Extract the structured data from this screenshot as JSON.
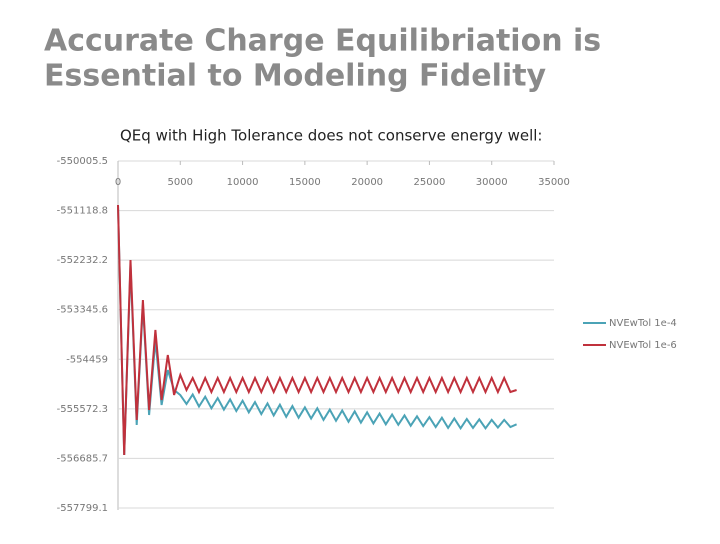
{
  "slide": {
    "title_lines": [
      "Accurate Charge Equilibriation is",
      "Essential to Modeling Fidelity"
    ]
  },
  "chart_data": {
    "type": "line",
    "title": "QEq with High Tolerance does not conserve energy well:",
    "x": [
      0,
      500,
      1000,
      1500,
      2000,
      2500,
      3000,
      3500,
      4000,
      4500,
      5000,
      5500,
      6000,
      6500,
      7000,
      7500,
      8000,
      8500,
      9000,
      9500,
      10000,
      10500,
      11000,
      11500,
      12000,
      12500,
      13000,
      13500,
      14000,
      14500,
      15000,
      15500,
      16000,
      16500,
      17000,
      17500,
      18000,
      18500,
      19000,
      19500,
      20000,
      20500,
      21000,
      21500,
      22000,
      22500,
      23000,
      23500,
      24000,
      24500,
      25000,
      25500,
      26000,
      26500,
      27000,
      27500,
      28000,
      28500,
      29000,
      29500,
      30000,
      30500,
      31000,
      31500,
      32000
    ],
    "series": [
      {
        "name": "NVEwTol 1e-4",
        "color": "#4ba3b6",
        "values": [
          -550994,
          -556609,
          -552341,
          -555935,
          -553240,
          -555710,
          -554026,
          -555486,
          -554700,
          -555149,
          -555261,
          -555463,
          -555250,
          -555520,
          -555300,
          -555560,
          -555330,
          -555590,
          -555360,
          -555620,
          -555390,
          -555650,
          -555420,
          -555690,
          -555450,
          -555720,
          -555480,
          -555750,
          -555510,
          -555770,
          -555540,
          -555790,
          -555560,
          -555820,
          -555590,
          -555840,
          -555610,
          -555860,
          -555630,
          -555880,
          -555650,
          -555900,
          -555680,
          -555920,
          -555700,
          -555930,
          -555720,
          -555950,
          -555740,
          -555960,
          -555760,
          -555980,
          -555770,
          -556000,
          -555790,
          -556010,
          -555800,
          -556000,
          -555810,
          -556010,
          -555820,
          -555990,
          -555820,
          -555980,
          -555920
        ]
      },
      {
        "name": "NVEwTol 1e-6",
        "color": "#c0313c",
        "values": [
          -550994,
          -556609,
          -552229,
          -555823,
          -553127,
          -555598,
          -553801,
          -555373,
          -554363,
          -555261,
          -554812,
          -555149,
          -554879,
          -555194,
          -554879,
          -555194,
          -554879,
          -555194,
          -554879,
          -555194,
          -554879,
          -555194,
          -554879,
          -555194,
          -554879,
          -555194,
          -554879,
          -555194,
          -554879,
          -555194,
          -554879,
          -555194,
          -554879,
          -555194,
          -554879,
          -555194,
          -554879,
          -555194,
          -554879,
          -555194,
          -554879,
          -555194,
          -554879,
          -555194,
          -554879,
          -555194,
          -554879,
          -555194,
          -554879,
          -555194,
          -554879,
          -555194,
          -554879,
          -555194,
          -554879,
          -555194,
          -554879,
          -555194,
          -554879,
          -555194,
          -554879,
          -555194,
          -554879,
          -555194,
          -555149
        ]
      }
    ],
    "xlim": [
      0,
      35000
    ],
    "xticks": [
      0,
      5000,
      10000,
      15000,
      20000,
      25000,
      30000,
      35000
    ],
    "ylim": [
      -557799.1,
      -550005.5
    ],
    "yticks": [
      -550005.5,
      -551118.8,
      -552232.2,
      -553345.6,
      -554459,
      -555572.3,
      -556685.7,
      -557799.1
    ],
    "grid": true,
    "legend": "right"
  }
}
